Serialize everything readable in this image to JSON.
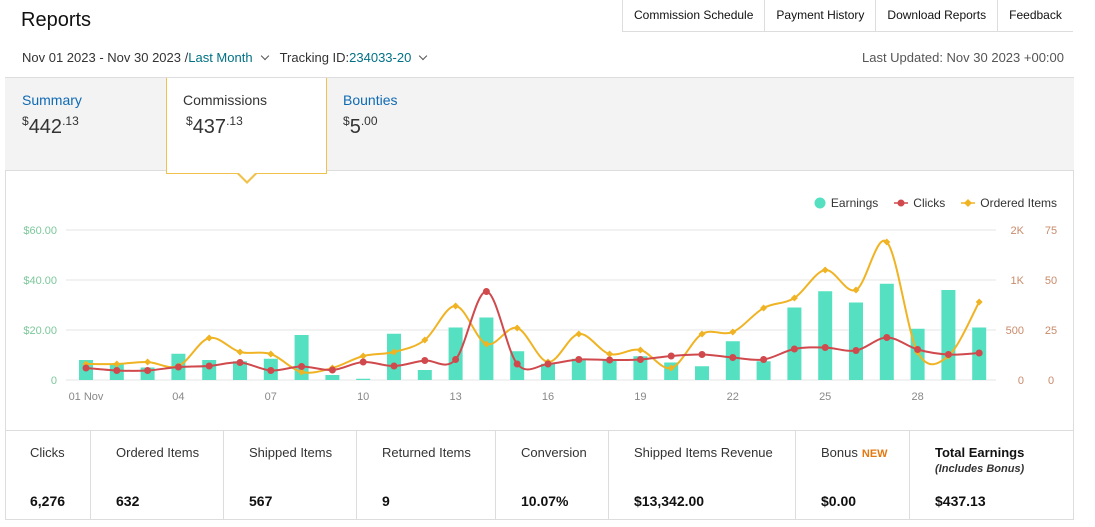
{
  "page": {
    "title": "Reports"
  },
  "topnav": [
    "Commission Schedule",
    "Payment History",
    "Download Reports",
    "Feedback"
  ],
  "filters": {
    "date_range": "Nov 01 2023 - Nov 30 2023 / ",
    "date_preset": "Last Month",
    "tracking_label": "Tracking ID: ",
    "tracking_id": "234033-20",
    "last_updated": "Last Updated: Nov 30 2023 +00:00"
  },
  "tabs": {
    "summary": {
      "label": "Summary",
      "currency": "$",
      "whole": "442",
      "cents": ".13"
    },
    "commissions": {
      "label": "Commissions",
      "currency": "$",
      "whole": "437",
      "cents": ".13"
    },
    "bounties": {
      "label": "Bounties",
      "currency": "$",
      "whole": "5",
      "cents": ".00"
    }
  },
  "legend": {
    "earnings": "Earnings",
    "clicks": "Clicks",
    "items": "Ordered Items"
  },
  "stats": {
    "clicks": {
      "label": "Clicks",
      "value": "6,276"
    },
    "ordered": {
      "label": "Ordered Items",
      "value": "632"
    },
    "shipped": {
      "label": "Shipped Items",
      "value": "567"
    },
    "returned": {
      "label": "Returned Items",
      "value": "9"
    },
    "conversion": {
      "label": "Conversion",
      "value": "10.07%"
    },
    "revenue": {
      "label": "Shipped Items Revenue",
      "value": "$13,342.00"
    },
    "bonus": {
      "label": "Bonus",
      "badge": "NEW",
      "value": "$0.00"
    },
    "total": {
      "label": "Total Earnings",
      "sub": "(Includes Bonus)",
      "value": "$437.13"
    }
  },
  "colors": {
    "earnings": "#54e0c1",
    "clicks": "#d0494d",
    "items": "#f0b323",
    "accent_link": "#007185",
    "tab_border": "#f0c14b"
  },
  "chart_data": {
    "type": "bar",
    "x": [
      1,
      2,
      3,
      4,
      5,
      6,
      7,
      8,
      9,
      10,
      11,
      12,
      13,
      14,
      15,
      16,
      17,
      18,
      19,
      20,
      21,
      22,
      23,
      24,
      25,
      26,
      27,
      28,
      29,
      30
    ],
    "xticks": [
      "01 Nov",
      "04",
      "07",
      "10",
      "13",
      "16",
      "19",
      "22",
      "25",
      "28"
    ],
    "xtick_days": [
      1,
      4,
      7,
      10,
      13,
      16,
      19,
      22,
      25,
      28
    ],
    "y_left": {
      "ticks": [
        "0",
        "$20.00",
        "$40.00",
        "$60.00"
      ],
      "tick_values": [
        0,
        20,
        40,
        60
      ],
      "range": [
        0,
        60
      ]
    },
    "y_right1": {
      "ticks": [
        "0",
        "500",
        "1K",
        "2K"
      ],
      "range": [
        0,
        1500
      ]
    },
    "y_right2": {
      "ticks": [
        "0",
        "25",
        "50",
        "75"
      ],
      "tick_values": [
        0,
        25,
        50,
        75
      ],
      "range": [
        0,
        75
      ]
    },
    "series": [
      {
        "name": "Earnings",
        "type": "bar",
        "axis": "left",
        "values": [
          8,
          6.5,
          5,
          10.5,
          8,
          7.5,
          8.5,
          18,
          2,
          0.5,
          18.5,
          4,
          21,
          25,
          11.5,
          6.5,
          8.5,
          8,
          9.5,
          7,
          5.5,
          15.5,
          7.5,
          29,
          35.5,
          31,
          38.5,
          20.5,
          36,
          21
        ]
      },
      {
        "name": "Clicks",
        "type": "line",
        "axis": "right1",
        "values": [
          120,
          95,
          95,
          130,
          140,
          175,
          95,
          135,
          100,
          180,
          140,
          195,
          205,
          885,
          160,
          160,
          205,
          200,
          205,
          240,
          255,
          225,
          205,
          310,
          325,
          295,
          425,
          305,
          255,
          270
        ]
      },
      {
        "name": "Ordered Items",
        "type": "line",
        "axis": "right2",
        "values": [
          8,
          8,
          9,
          7,
          21,
          14,
          13,
          4,
          6,
          12,
          14,
          20,
          37,
          18,
          26,
          9,
          23,
          13,
          15,
          6,
          23,
          24,
          36,
          41,
          55,
          45,
          69,
          14,
          12,
          39
        ]
      }
    ]
  }
}
